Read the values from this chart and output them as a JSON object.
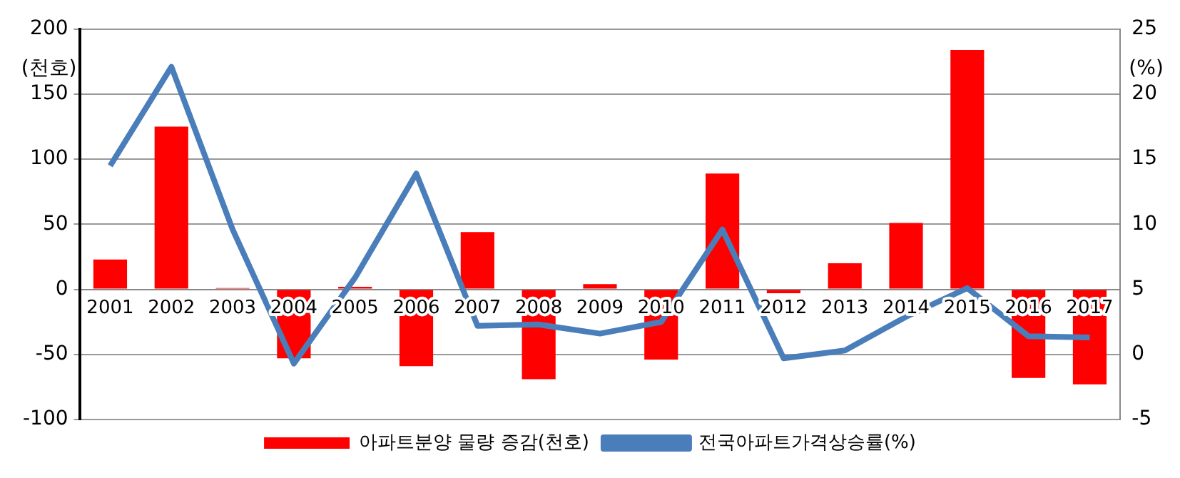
{
  "chart_data": {
    "type": "bar",
    "ylabel": "(천호)",
    "y2label": "(%)",
    "categories": [
      "2001",
      "2002",
      "2003",
      "2004",
      "2005",
      "2006",
      "2007",
      "2008",
      "2009",
      "2010",
      "2011",
      "2012",
      "2013",
      "2014",
      "2015",
      "2016",
      "2017"
    ],
    "series": [
      {
        "name": "아파트분양 물량 증감(천호)",
        "color": "#ff0000",
        "values": [
          23,
          125,
          1,
          -53,
          2,
          -59,
          44,
          -69,
          4,
          -54,
          89,
          -3,
          20,
          51,
          184,
          -68,
          -73
        ]
      },
      {
        "name": "전국아파트가격상승률(%)",
        "type": "line",
        "axis": "y2",
        "color": "#4a7ebb",
        "values": [
          14.5,
          22.1,
          9.6,
          -0.7,
          5.9,
          13.9,
          2.2,
          2.3,
          1.6,
          2.5,
          9.6,
          -0.3,
          0.3,
          2.9,
          5.1,
          1.4,
          1.3
        ]
      }
    ],
    "ylim": [
      -100,
      200
    ],
    "yticks": [
      -100,
      -50,
      0,
      50,
      100,
      150,
      200
    ],
    "y2lim": [
      -5,
      25
    ],
    "y2ticks": [
      -5,
      0,
      5,
      10,
      15,
      20,
      25
    ],
    "grid": "y",
    "legend": "bottom",
    "marker": "none",
    "line_style": "solid"
  }
}
